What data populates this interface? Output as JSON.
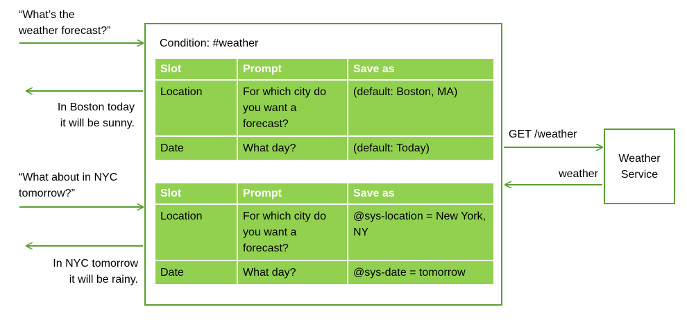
{
  "colors": {
    "green_fill": "#92d050",
    "green_line": "#5a9e32",
    "header_text": "#ffffff"
  },
  "left": {
    "user_q1": "“What’s the\nweather forecast?”",
    "reply1": "In Boston today\nit will be sunny.",
    "user_q2": "“What about in NYC\ntomorrow?”",
    "reply2": "In NYC tomorrow\nit will be rainy."
  },
  "frame": {
    "condition": "Condition: #weather"
  },
  "tables": [
    {
      "headers": [
        "Slot",
        "Prompt",
        "Save as"
      ],
      "rows": [
        [
          "Location",
          "For which city do you want a forecast?",
          "(default: Boston, MA)"
        ],
        [
          "Date",
          "What day?",
          "(default: Today)"
        ]
      ]
    },
    {
      "headers": [
        "Slot",
        "Prompt",
        "Save as"
      ],
      "rows": [
        [
          "Location",
          "For which city do you want a forecast?",
          "@sys-location = New York, NY"
        ],
        [
          "Date",
          "What day?",
          "@sys-date = tomorrow"
        ]
      ]
    }
  ],
  "right": {
    "request": "GET /weather",
    "response": "weather",
    "service": "Weather\nService"
  }
}
